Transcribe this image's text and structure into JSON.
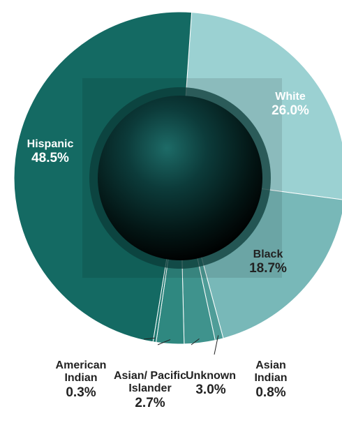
{
  "chart_data": {
    "type": "pie",
    "style": "donut",
    "slices": [
      {
        "label": "White",
        "value": 26.0,
        "display": "26.0%",
        "color": "#9bd1d2"
      },
      {
        "label": "Black",
        "value": 18.7,
        "display": "18.7%",
        "color": "#78b8b8"
      },
      {
        "label": "Asian Indian",
        "value": 0.8,
        "display": "0.8%",
        "color": "#4f9d98"
      },
      {
        "label": "Unknown",
        "value": 3.0,
        "display": "3.0%",
        "color": "#3f938d"
      },
      {
        "label": "Asian/ Pacific Islander",
        "value": 2.7,
        "display": "2.7%",
        "color": "#2f8880"
      },
      {
        "label": "American Indian",
        "value": 0.3,
        "display": "0.3%",
        "color": "#1f7a72"
      },
      {
        "label": "Hispanic",
        "value": 48.5,
        "display": "48.5%",
        "color": "#146a63"
      }
    ]
  },
  "labels": {
    "white": {
      "name": "White",
      "value": "26.0%"
    },
    "hispanic": {
      "name": "Hispanic",
      "value": "48.5%"
    },
    "black": {
      "name": "Black",
      "value": "18.7%"
    },
    "american_indian": {
      "name": "American Indian",
      "value": "0.3%"
    },
    "asian_pacific": {
      "name": "Asian/ Pacific Islander",
      "value": "2.7%"
    },
    "unknown": {
      "name": "Unknown",
      "value": "3.0%"
    },
    "asian_indian": {
      "name": "Asian Indian",
      "value": "0.8%"
    }
  }
}
